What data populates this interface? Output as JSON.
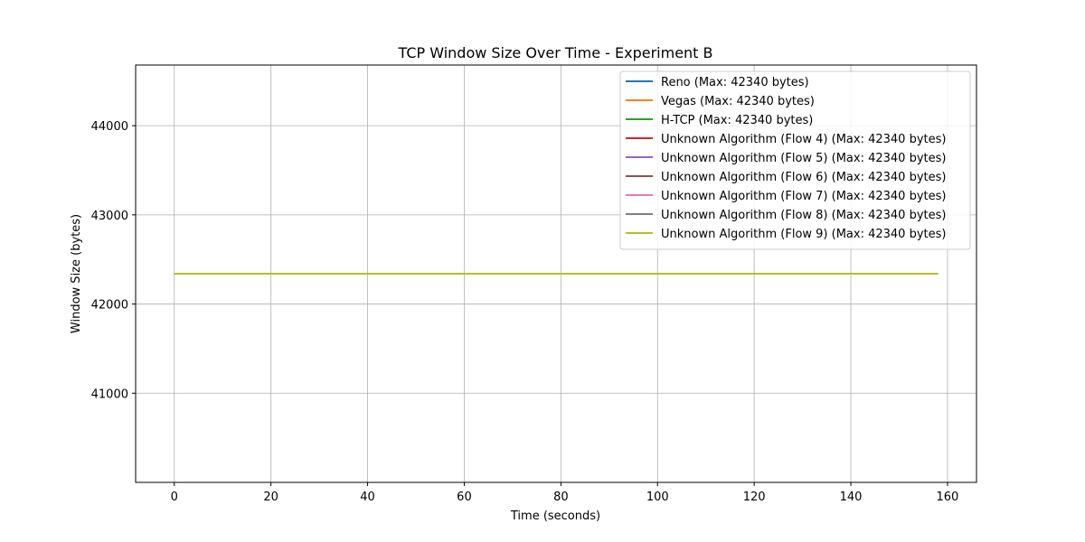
{
  "chart_data": {
    "type": "line",
    "title": "TCP Window Size Over Time - Experiment B",
    "xlabel": "Time (seconds)",
    "ylabel": "Window Size (bytes)",
    "xlim": [
      -8,
      166
    ],
    "ylim": [
      40000,
      44680
    ],
    "x_ticks": [
      0,
      20,
      40,
      60,
      80,
      100,
      120,
      140,
      160
    ],
    "y_ticks": [
      41000,
      42000,
      43000,
      44000
    ],
    "grid": true,
    "legend_position": "top-right",
    "series": [
      {
        "name": "Reno (Max: 42340 bytes)",
        "color": "#1f77b4",
        "x": [
          0,
          158
        ],
        "y": [
          42340,
          42340
        ]
      },
      {
        "name": "Vegas (Max: 42340 bytes)",
        "color": "#ff7f0e",
        "x": [
          0,
          158
        ],
        "y": [
          42340,
          42340
        ]
      },
      {
        "name": "H-TCP (Max: 42340 bytes)",
        "color": "#2ca02c",
        "x": [
          0,
          158
        ],
        "y": [
          42340,
          42340
        ]
      },
      {
        "name": "Unknown Algorithm (Flow 4) (Max: 42340 bytes)",
        "color": "#d62728",
        "x": [
          0,
          158
        ],
        "y": [
          42340,
          42340
        ]
      },
      {
        "name": "Unknown Algorithm (Flow 5) (Max: 42340 bytes)",
        "color": "#9467bd",
        "x": [
          0,
          158
        ],
        "y": [
          42340,
          42340
        ]
      },
      {
        "name": "Unknown Algorithm (Flow 6) (Max: 42340 bytes)",
        "color": "#8c564b",
        "x": [
          0,
          158
        ],
        "y": [
          42340,
          42340
        ]
      },
      {
        "name": "Unknown Algorithm (Flow 7) (Max: 42340 bytes)",
        "color": "#e377c2",
        "x": [
          0,
          158
        ],
        "y": [
          42340,
          42340
        ]
      },
      {
        "name": "Unknown Algorithm (Flow 8) (Max: 42340 bytes)",
        "color": "#7f7f7f",
        "x": [
          0,
          158
        ],
        "y": [
          42340,
          42340
        ]
      },
      {
        "name": "Unknown Algorithm (Flow 9) (Max: 42340 bytes)",
        "color": "#bcbd22",
        "x": [
          0,
          158
        ],
        "y": [
          42340,
          42340
        ]
      }
    ]
  }
}
